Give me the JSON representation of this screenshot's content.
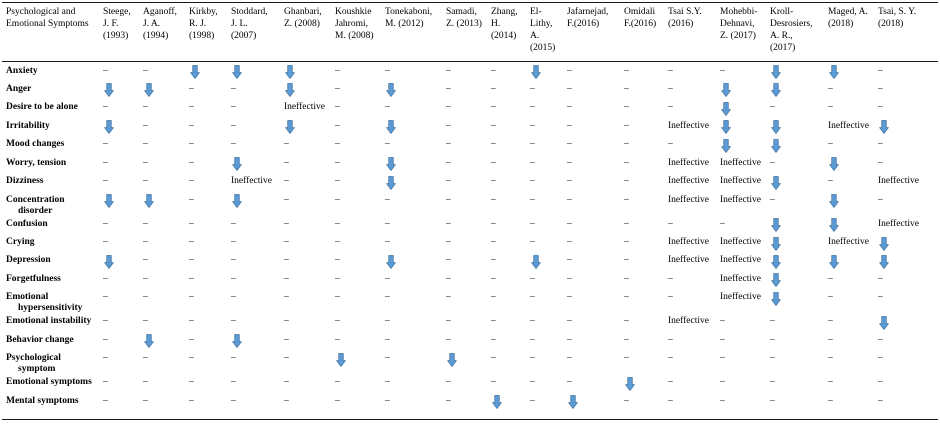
{
  "table": {
    "first_header_lines": [
      "Psychological and",
      "Emotional Symptoms"
    ],
    "studies": [
      {
        "lines": [
          "Steege,",
          "J. F.",
          "(1993)"
        ]
      },
      {
        "lines": [
          "Aganoff,",
          "J. A.",
          "(1994)"
        ]
      },
      {
        "lines": [
          "Kirkby,",
          "R. J.",
          "(1998)"
        ]
      },
      {
        "lines": [
          "Stoddard,",
          "J. L.",
          "(2007)"
        ]
      },
      {
        "lines": [
          "Ghanbari,",
          "Z. (2008)"
        ]
      },
      {
        "lines": [
          "Koushkie",
          "Jahromi,",
          "M. (2008)"
        ]
      },
      {
        "lines": [
          "Tonekaboni,",
          "M. (2012)"
        ]
      },
      {
        "lines": [
          "Samadi,",
          "Z. (2013)"
        ]
      },
      {
        "lines": [
          "Zhang,",
          "H.",
          "(2014)"
        ]
      },
      {
        "lines": [
          "El-",
          "Lithy,",
          "A.",
          "(2015)"
        ]
      },
      {
        "lines": [
          "Jafarnejad,",
          "F.(2016)"
        ]
      },
      {
        "lines": [
          "Omidali",
          "F.(2016)"
        ]
      },
      {
        "lines": [
          "Tsai S.Y.",
          "(2016)"
        ]
      },
      {
        "lines": [
          "Mohebbi-",
          "Dehnavi,",
          "Z. (2017)"
        ]
      },
      {
        "lines": [
          "Kroll-",
          "Desrosiers,",
          "A. R.,",
          "(2017)"
        ]
      },
      {
        "lines": [
          "Maged, A.",
          "(2018)"
        ]
      },
      {
        "lines": [
          "Tsai, S. Y.",
          "(2018)"
        ]
      }
    ],
    "rows": [
      {
        "symptom_lines": [
          "Anxiety"
        ],
        "cells": [
          "–",
          "–",
          {
            "icon": "down-arrow-icon"
          },
          {
            "icon": "down-arrow-icon"
          },
          {
            "icon": "down-arrow-icon"
          },
          "–",
          "–",
          "–",
          "–",
          {
            "icon": "down-arrow-icon"
          },
          "–",
          "–",
          "–",
          "–",
          {
            "icon": "down-arrow-icon"
          },
          {
            "icon": "down-arrow-icon"
          },
          "–"
        ]
      },
      {
        "symptom_lines": [
          "Anger"
        ],
        "cells": [
          {
            "icon": "down-arrow-icon"
          },
          {
            "icon": "down-arrow-icon"
          },
          "–",
          "–",
          {
            "icon": "down-arrow-icon"
          },
          "–",
          {
            "icon": "down-arrow-icon"
          },
          "–",
          "–",
          "–",
          "–",
          "–",
          "–",
          {
            "icon": "down-arrow-icon"
          },
          {
            "icon": "down-arrow-icon"
          },
          "–",
          "–"
        ]
      },
      {
        "symptom_lines": [
          "Desire to be alone"
        ],
        "cells": [
          "–",
          "–",
          "–",
          "–",
          "Ineffective",
          "–",
          "–",
          "–",
          "–",
          "–",
          "–",
          "–",
          "–",
          {
            "icon": "down-arrow-icon"
          },
          "–",
          "–",
          "–"
        ]
      },
      {
        "symptom_lines": [
          "Irritability"
        ],
        "cells": [
          {
            "icon": "down-arrow-icon"
          },
          "–",
          "–",
          "–",
          {
            "icon": "down-arrow-icon"
          },
          "–",
          {
            "icon": "down-arrow-icon"
          },
          "–",
          "–",
          "–",
          "–",
          "–",
          "Ineffective",
          {
            "icon": "down-arrow-icon"
          },
          {
            "icon": "down-arrow-icon"
          },
          "Ineffective",
          {
            "icon": "down-arrow-icon"
          }
        ]
      },
      {
        "symptom_lines": [
          "Mood changes"
        ],
        "cells": [
          "–",
          "–",
          "–",
          "–",
          "–",
          "–",
          "–",
          "–",
          "–",
          "–",
          "–",
          "–",
          "–",
          {
            "icon": "down-arrow-icon"
          },
          {
            "icon": "down-arrow-icon"
          },
          "–",
          "–"
        ]
      },
      {
        "symptom_lines": [
          "Worry, tension"
        ],
        "cells": [
          "–",
          "–",
          "–",
          {
            "icon": "down-arrow-icon"
          },
          "–",
          "–",
          {
            "icon": "down-arrow-icon"
          },
          "–",
          "–",
          "–",
          "–",
          "–",
          "Ineffective",
          "Ineffective",
          "–",
          {
            "icon": "down-arrow-icon"
          },
          "–"
        ]
      },
      {
        "symptom_lines": [
          "Dizziness"
        ],
        "cells": [
          "–",
          "–",
          "–",
          "Ineffective",
          "–",
          "–",
          {
            "icon": "down-arrow-icon"
          },
          "–",
          "–",
          "–",
          "–",
          "–",
          "Ineffective",
          "Ineffective",
          {
            "icon": "down-arrow-icon"
          },
          "–",
          "Ineffective"
        ]
      },
      {
        "symptom_lines": [
          "Concentration",
          "disorder"
        ],
        "cells": [
          {
            "icon": "down-arrow-icon"
          },
          {
            "icon": "down-arrow-icon"
          },
          "–",
          {
            "icon": "down-arrow-icon"
          },
          "–",
          "–",
          "–",
          "–",
          "–",
          "–",
          "–",
          "–",
          "Ineffective",
          "Ineffective",
          "–",
          {
            "icon": "down-arrow-icon"
          },
          "–"
        ]
      },
      {
        "symptom_lines": [
          "Confusion"
        ],
        "cells": [
          "–",
          "–",
          "–",
          "–",
          "–",
          "–",
          "–",
          "–",
          "–",
          "–",
          "–",
          "–",
          "–",
          "–",
          {
            "icon": "down-arrow-icon"
          },
          {
            "icon": "down-arrow-icon"
          },
          "Ineffective"
        ]
      },
      {
        "symptom_lines": [
          "Crying"
        ],
        "cells": [
          "–",
          "–",
          "–",
          "–",
          "–",
          "–",
          "–",
          "–",
          "–",
          "–",
          "–",
          "–",
          "Ineffective",
          "Ineffective",
          {
            "icon": "down-arrow-icon"
          },
          "Ineffective",
          {
            "icon": "down-arrow-icon"
          }
        ]
      },
      {
        "symptom_lines": [
          "Depression"
        ],
        "cells": [
          {
            "icon": "down-arrow-icon"
          },
          "–",
          "–",
          "–",
          "–",
          "–",
          {
            "icon": "down-arrow-icon"
          },
          "–",
          "–",
          {
            "icon": "down-arrow-icon"
          },
          "–",
          "–",
          "Ineffective",
          "Ineffective",
          {
            "icon": "down-arrow-icon"
          },
          {
            "icon": "down-arrow-icon"
          },
          {
            "icon": "down-arrow-icon"
          }
        ]
      },
      {
        "symptom_lines": [
          "Forgetfulness"
        ],
        "cells": [
          "–",
          "–",
          "–",
          "–",
          "–",
          "–",
          "–",
          "–",
          "–",
          "–",
          "–",
          "–",
          "–",
          "Ineffective",
          {
            "icon": "down-arrow-icon"
          },
          "–",
          "–"
        ]
      },
      {
        "symptom_lines": [
          "Emotional",
          "hypersensitivity"
        ],
        "cells": [
          "–",
          "–",
          "–",
          "–",
          "–",
          "–",
          "–",
          "–",
          "–",
          "–",
          "–",
          "–",
          "–",
          "Ineffective",
          {
            "icon": "down-arrow-icon"
          },
          "–",
          "–"
        ]
      },
      {
        "symptom_lines": [
          "Emotional instability"
        ],
        "cells": [
          "–",
          "–",
          "–",
          "–",
          "–",
          "–",
          "–",
          "–",
          "–",
          "–",
          "–",
          "–",
          "Ineffective",
          "–",
          "–",
          "–",
          {
            "icon": "down-arrow-icon"
          }
        ]
      },
      {
        "symptom_lines": [
          "Behavior change"
        ],
        "cells": [
          "–",
          {
            "icon": "down-arrow-icon"
          },
          "–",
          {
            "icon": "down-arrow-icon"
          },
          "–",
          "–",
          "–",
          "–",
          "–",
          "–",
          "–",
          "–",
          "–",
          "–",
          "–",
          "–",
          "–"
        ]
      },
      {
        "symptom_lines": [
          "Psychological",
          "symptom"
        ],
        "cells": [
          "–",
          "–",
          "–",
          "–",
          "–",
          {
            "icon": "down-arrow-icon"
          },
          "–",
          {
            "icon": "down-arrow-icon"
          },
          "–",
          "–",
          "–",
          "–",
          "–",
          "–",
          "–",
          "–",
          "–"
        ]
      },
      {
        "symptom_lines": [
          "Emotional symptoms"
        ],
        "cells": [
          "–",
          "–",
          "–",
          "–",
          "–",
          "–",
          "–",
          "–",
          "–",
          "–",
          "–",
          {
            "icon": "down-arrow-icon"
          },
          "–",
          "–",
          "–",
          "–",
          "–"
        ]
      },
      {
        "symptom_lines": [
          "Mental symptoms"
        ],
        "cells": [
          "–",
          "–",
          "–",
          "–",
          "–",
          "–",
          "–",
          "–",
          {
            "icon": "down-arrow-icon"
          },
          "–",
          {
            "icon": "down-arrow-icon"
          },
          "–",
          "–",
          "–",
          "–",
          "–",
          "–"
        ]
      }
    ]
  },
  "colors": {
    "arrow_fill": "#5b9bd5",
    "arrow_stroke": "#41719c"
  }
}
